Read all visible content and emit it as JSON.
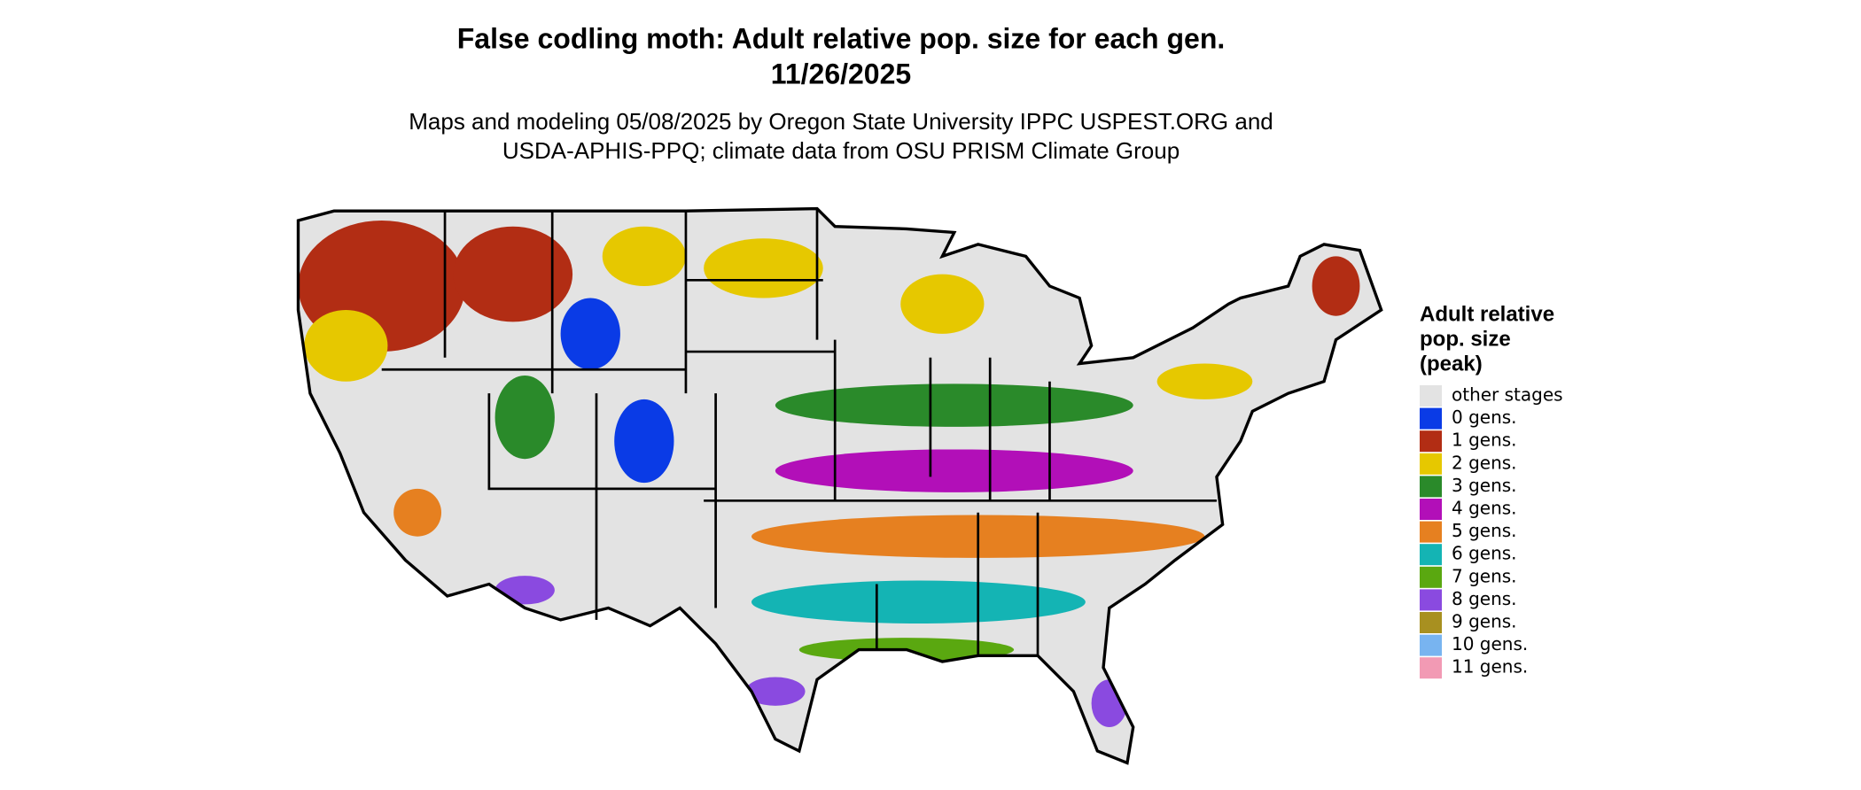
{
  "title": [
    "False codling moth: Adult relative pop. size for each gen.",
    "11/26/2025"
  ],
  "subtitle": [
    "Maps and modeling 05/08/2025 by Oregon State University IPPC USPEST.ORG and",
    "USDA-APHIS-PPQ; climate data from OSU PRISM Climate Group"
  ],
  "legend": {
    "title": [
      "Adult relative",
      "pop. size",
      "(peak)"
    ],
    "items": [
      {
        "label": "other stages",
        "color": "#e3e3e3"
      },
      {
        "label": "0 gens.",
        "color": "#0a3be6"
      },
      {
        "label": "1 gens.",
        "color": "#b22d14"
      },
      {
        "label": "2 gens.",
        "color": "#e6c800"
      },
      {
        "label": "3 gens.",
        "color": "#2a8a2a"
      },
      {
        "label": "4 gens.",
        "color": "#b20fb8"
      },
      {
        "label": "5 gens.",
        "color": "#e68020"
      },
      {
        "label": "6 gens.",
        "color": "#14b4b4"
      },
      {
        "label": "7 gens.",
        "color": "#5aa810"
      },
      {
        "label": "8 gens.",
        "color": "#8a4ae0"
      },
      {
        "label": "9 gens.",
        "color": "#a89020"
      },
      {
        "label": "10 gens.",
        "color": "#78b4f0"
      },
      {
        "label": "11 gens.",
        "color": "#f29ab4"
      }
    ]
  }
}
